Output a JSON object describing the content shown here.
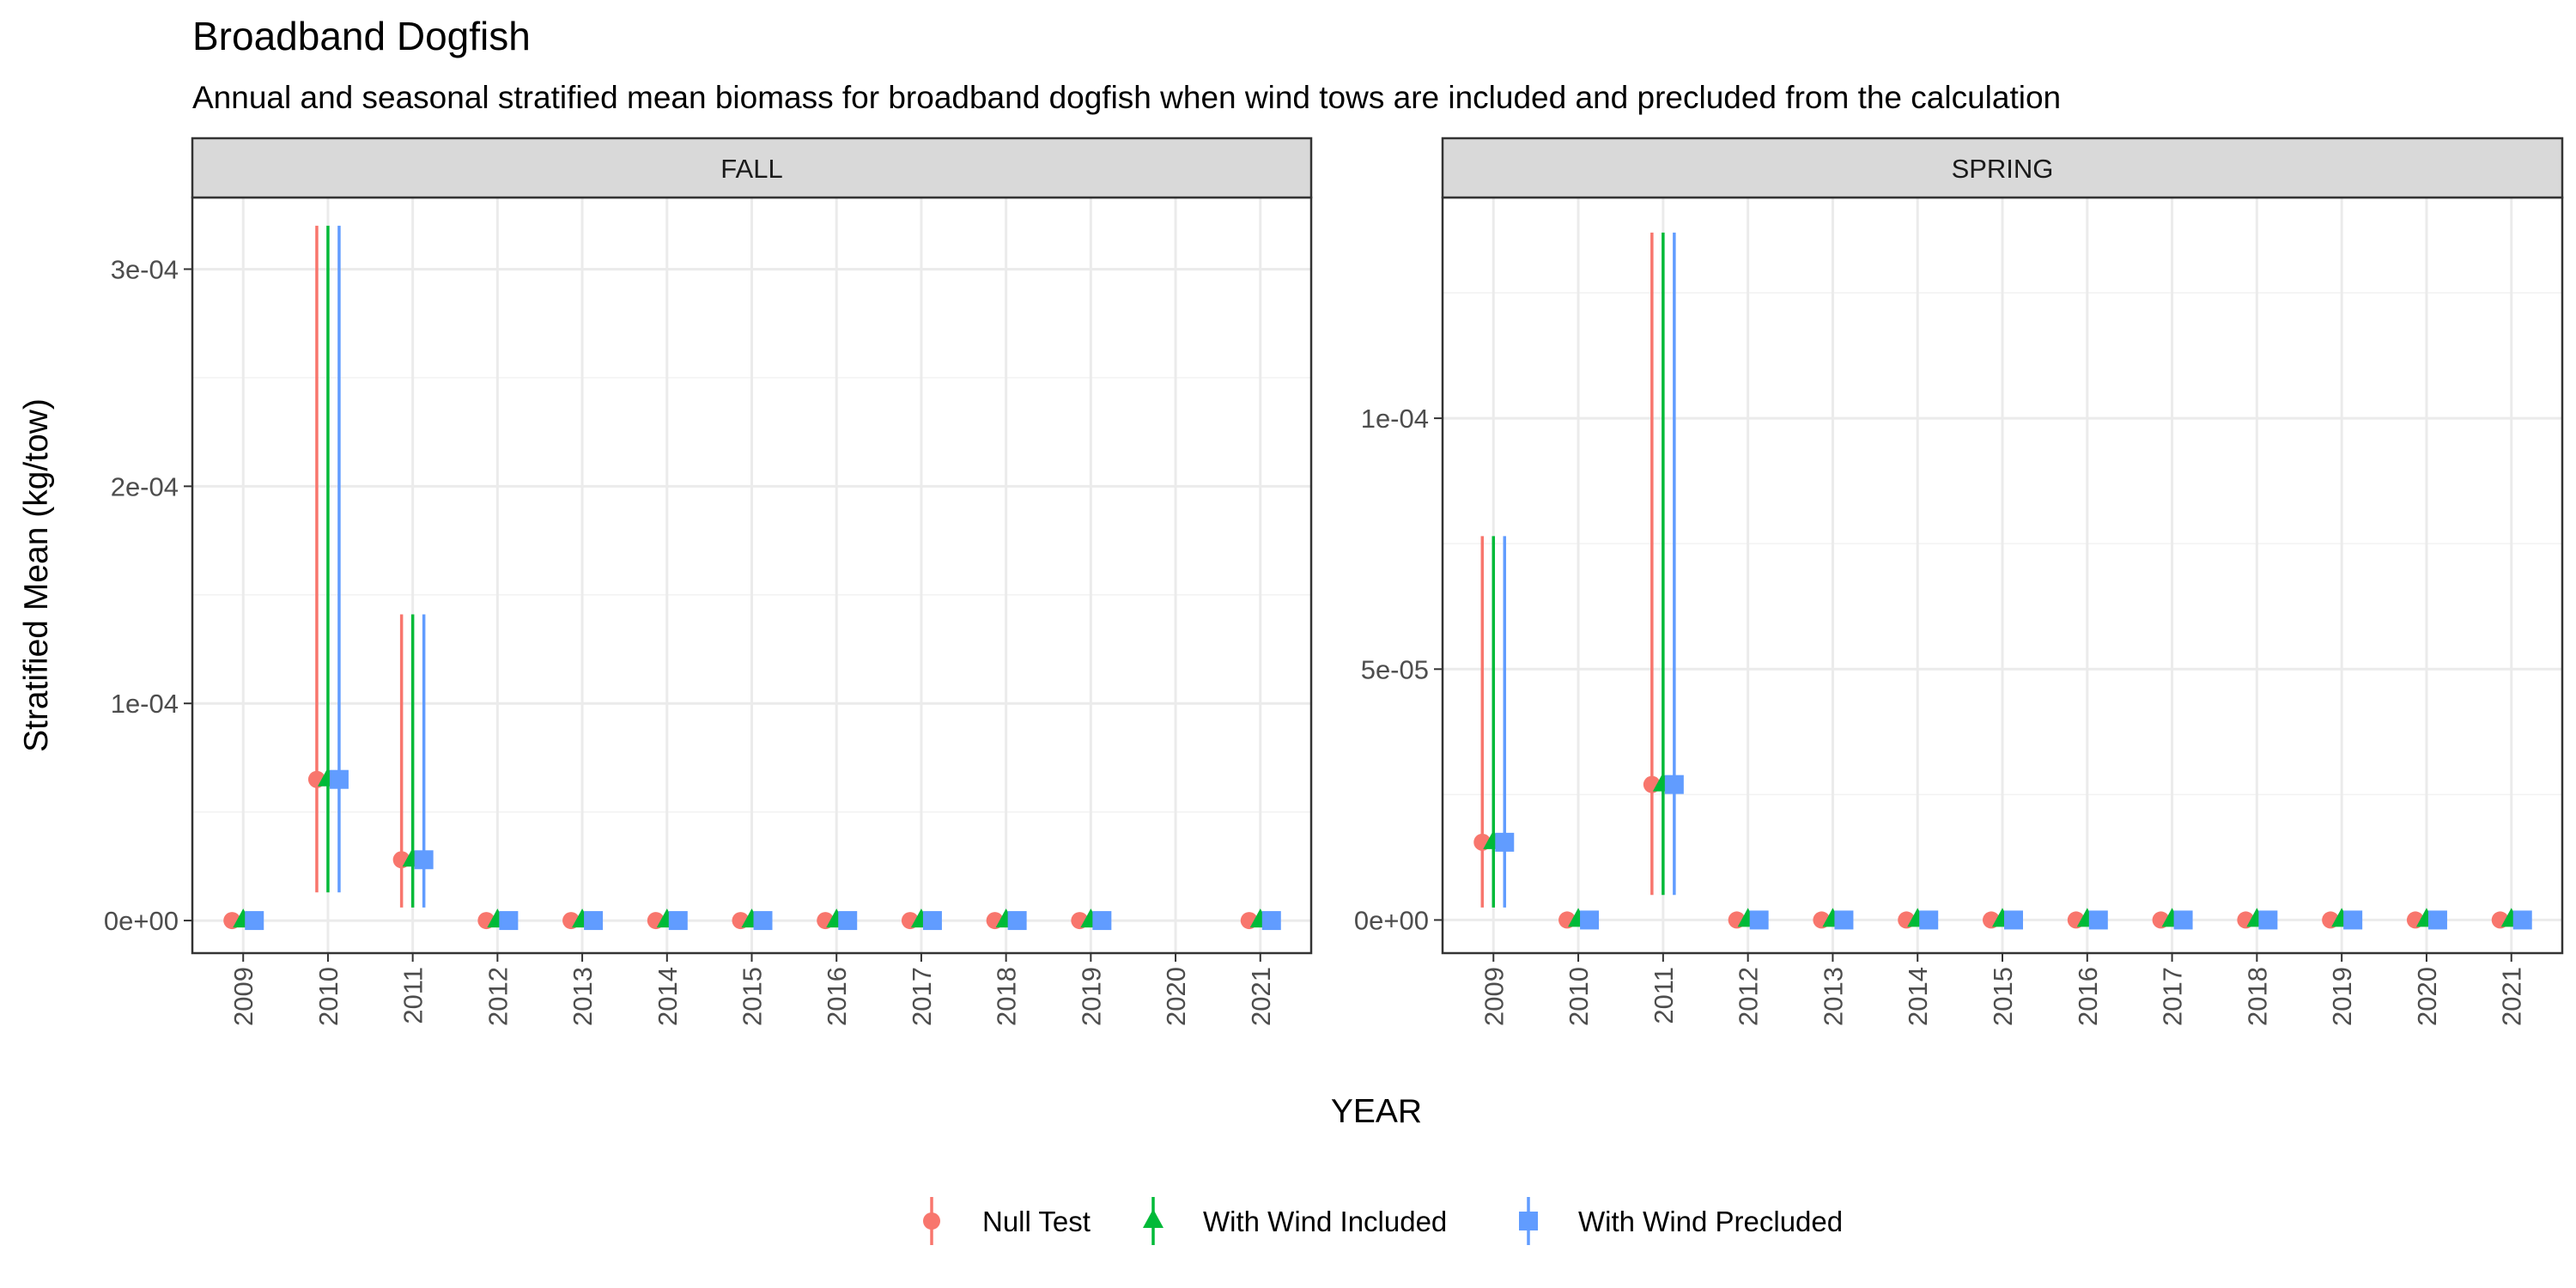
{
  "chart_data": {
    "type": "scatter",
    "title": "Broadband Dogfish",
    "subtitle": "Annual and seasonal stratified mean biomass for broadband dogfish when wind tows are included and precluded from the calculation",
    "xlabel": "YEAR",
    "ylabel": "Stratified Mean (kg/tow)",
    "grid": true,
    "legend_position": "bottom",
    "series": [
      {
        "name": "Null Test",
        "shape": "circle",
        "color": "#F8766D"
      },
      {
        "name": "With Wind Included",
        "shape": "triangle",
        "color": "#00BA38"
      },
      {
        "name": "With Wind Precluded",
        "shape": "square",
        "color": "#619CFF"
      }
    ],
    "panels": [
      {
        "label": "FALL",
        "years": [
          "2009",
          "2010",
          "2011",
          "2012",
          "2013",
          "2014",
          "2015",
          "2016",
          "2017",
          "2018",
          "2019",
          "2020",
          "2021"
        ],
        "ylim": [
          -1.5e-05,
          0.000333
        ],
        "y_ticks": [
          0,
          0.0001,
          0.0002,
          0.0003
        ],
        "y_tick_labels": [
          "0e+00",
          "1e-04",
          "2e-04",
          "3e-04"
        ],
        "points": [
          {
            "year": "2009",
            "mean": 0,
            "lower": 0,
            "upper": 0
          },
          {
            "year": "2010",
            "mean": 6.5e-05,
            "lower": 1.3e-05,
            "upper": 0.00032
          },
          {
            "year": "2011",
            "mean": 2.8e-05,
            "lower": 6e-06,
            "upper": 0.000141
          },
          {
            "year": "2012",
            "mean": 0,
            "lower": 0,
            "upper": 0
          },
          {
            "year": "2013",
            "mean": 0,
            "lower": 0,
            "upper": 0
          },
          {
            "year": "2014",
            "mean": 0,
            "lower": 0,
            "upper": 0
          },
          {
            "year": "2015",
            "mean": 0,
            "lower": 0,
            "upper": 0
          },
          {
            "year": "2016",
            "mean": 0,
            "lower": 0,
            "upper": 0
          },
          {
            "year": "2017",
            "mean": 0,
            "lower": 0,
            "upper": 0
          },
          {
            "year": "2018",
            "mean": 0,
            "lower": 0,
            "upper": 0
          },
          {
            "year": "2019",
            "mean": 0,
            "lower": 0,
            "upper": 0
          },
          {
            "year": "2021",
            "mean": 0,
            "lower": 0,
            "upper": 0
          }
        ]
      },
      {
        "label": "SPRING",
        "years": [
          "2009",
          "2010",
          "2011",
          "2012",
          "2013",
          "2014",
          "2015",
          "2016",
          "2017",
          "2018",
          "2019",
          "2020",
          "2021"
        ],
        "ylim": [
          -6.6e-06,
          0.000144
        ],
        "y_ticks": [
          0,
          5e-05,
          0.0001
        ],
        "y_tick_labels": [
          "0e+00",
          "5e-05",
          "1e-04"
        ],
        "points": [
          {
            "year": "2009",
            "mean": 1.55e-05,
            "lower": 2.5e-06,
            "upper": 7.65e-05
          },
          {
            "year": "2010",
            "mean": 0,
            "lower": 0,
            "upper": 0
          },
          {
            "year": "2011",
            "mean": 2.7e-05,
            "lower": 5e-06,
            "upper": 0.000137
          },
          {
            "year": "2012",
            "mean": 0,
            "lower": 0,
            "upper": 0
          },
          {
            "year": "2013",
            "mean": 0,
            "lower": 0,
            "upper": 0
          },
          {
            "year": "2014",
            "mean": 0,
            "lower": 0,
            "upper": 0
          },
          {
            "year": "2015",
            "mean": 0,
            "lower": 0,
            "upper": 0
          },
          {
            "year": "2016",
            "mean": 0,
            "lower": 0,
            "upper": 0
          },
          {
            "year": "2017",
            "mean": 0,
            "lower": 0,
            "upper": 0
          },
          {
            "year": "2018",
            "mean": 0,
            "lower": 0,
            "upper": 0
          },
          {
            "year": "2019",
            "mean": 0,
            "lower": 0,
            "upper": 0
          },
          {
            "year": "2020",
            "mean": 0,
            "lower": 0,
            "upper": 0
          },
          {
            "year": "2021",
            "mean": 0,
            "lower": 0,
            "upper": 0
          }
        ]
      }
    ]
  }
}
